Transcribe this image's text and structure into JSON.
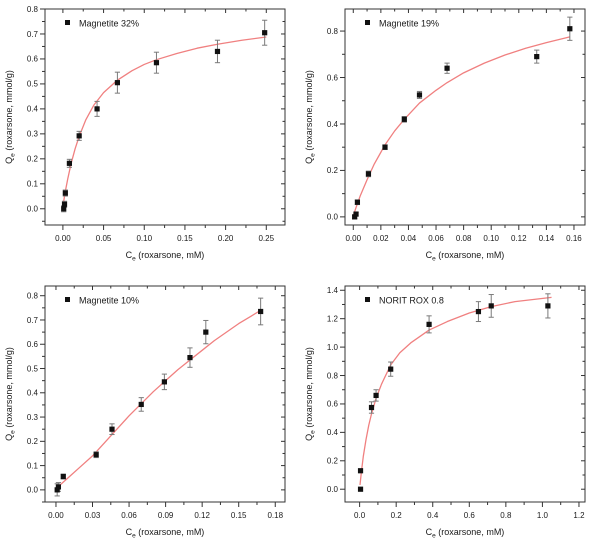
{
  "figure": {
    "background": "#ffffff",
    "colors": {
      "curve": "#f08080",
      "marker": "#111111",
      "error_bar": "#7a7a7a",
      "axis": "#333333",
      "text": "#1a1a1a"
    }
  },
  "chart_data": [
    {
      "type": "scatter",
      "panel": "top-left",
      "legend": "Magnetite 32%",
      "xlabel": "C_e (roxarsone, mM)",
      "ylabel": "Q_e (roxarsone, mmol/g)",
      "xlim": [
        -0.022,
        0.273
      ],
      "ylim": [
        -0.065,
        0.8
      ],
      "xtick_vals": [
        0.0,
        0.05,
        0.1,
        0.15,
        0.2,
        0.25
      ],
      "xtick_labels": [
        "0.00",
        "0.05",
        "0.10",
        "0.15",
        "0.20",
        "0.25"
      ],
      "ytick_vals": [
        0.0,
        0.1,
        0.2,
        0.3,
        0.4,
        0.5,
        0.6,
        0.7,
        0.8
      ],
      "ytick_labels": [
        "0.0",
        "0.1",
        "0.2",
        "0.3",
        "0.4",
        "0.5",
        "0.6",
        "0.7",
        "0.8"
      ],
      "grid": false,
      "legend_position": "upper-left-inside",
      "points": [
        [
          0.001,
          0.0,
          0.012
        ],
        [
          0.002,
          0.018,
          0.012
        ],
        [
          0.003,
          0.063,
          0.012
        ],
        [
          0.008,
          0.182,
          0.016
        ],
        [
          0.02,
          0.292,
          0.018
        ],
        [
          0.042,
          0.4,
          0.03
        ],
        [
          0.067,
          0.505,
          0.042
        ],
        [
          0.115,
          0.585,
          0.042
        ],
        [
          0.19,
          0.63,
          0.045
        ],
        [
          0.248,
          0.705,
          0.05
        ]
      ],
      "fit_curve": [
        [
          0.0,
          0.01
        ],
        [
          0.003,
          0.07
        ],
        [
          0.006,
          0.12
        ],
        [
          0.01,
          0.18
        ],
        [
          0.015,
          0.24
        ],
        [
          0.02,
          0.29
        ],
        [
          0.028,
          0.355
        ],
        [
          0.038,
          0.415
        ],
        [
          0.05,
          0.465
        ],
        [
          0.067,
          0.515
        ],
        [
          0.085,
          0.553
        ],
        [
          0.1,
          0.578
        ],
        [
          0.115,
          0.597
        ],
        [
          0.14,
          0.622
        ],
        [
          0.165,
          0.643
        ],
        [
          0.19,
          0.659
        ],
        [
          0.22,
          0.675
        ],
        [
          0.25,
          0.688
        ]
      ]
    },
    {
      "type": "scatter",
      "panel": "top-right",
      "legend": "Magnetite 19%",
      "xlabel": "C_e (roxarsone, mM)",
      "ylabel": "Q_e (roxarsone, mmol/g)",
      "xlim": [
        -0.006,
        0.168
      ],
      "ylim": [
        -0.035,
        0.895
      ],
      "xtick_vals": [
        0.0,
        0.02,
        0.04,
        0.06,
        0.08,
        0.1,
        0.12,
        0.14,
        0.16
      ],
      "xtick_labels": [
        "0.00",
        "0.02",
        "0.04",
        "0.06",
        "0.08",
        "0.10",
        "0.12",
        "0.14",
        "0.16"
      ],
      "ytick_vals": [
        0.0,
        0.2,
        0.4,
        0.6,
        0.8
      ],
      "ytick_labels": [
        "0.0",
        "0.2",
        "0.4",
        "0.6",
        "0.8"
      ],
      "grid": false,
      "legend_position": "upper-left-inside",
      "points": [
        [
          0.001,
          0.0,
          0.008
        ],
        [
          0.002,
          0.012,
          0.008
        ],
        [
          0.003,
          0.063,
          0.01
        ],
        [
          0.011,
          0.185,
          0.012
        ],
        [
          0.023,
          0.3,
          0.01
        ],
        [
          0.037,
          0.42,
          0.012
        ],
        [
          0.048,
          0.525,
          0.015
        ],
        [
          0.068,
          0.64,
          0.022
        ],
        [
          0.133,
          0.69,
          0.028
        ],
        [
          0.157,
          0.81,
          0.05
        ]
      ],
      "fit_curve": [
        [
          0.0,
          0.005
        ],
        [
          0.002,
          0.04
        ],
        [
          0.005,
          0.09
        ],
        [
          0.01,
          0.16
        ],
        [
          0.015,
          0.225
        ],
        [
          0.023,
          0.31
        ],
        [
          0.03,
          0.37
        ],
        [
          0.037,
          0.42
        ],
        [
          0.048,
          0.49
        ],
        [
          0.06,
          0.545
        ],
        [
          0.068,
          0.578
        ],
        [
          0.08,
          0.62
        ],
        [
          0.095,
          0.662
        ],
        [
          0.11,
          0.697
        ],
        [
          0.125,
          0.726
        ],
        [
          0.14,
          0.75
        ],
        [
          0.157,
          0.775
        ]
      ]
    },
    {
      "type": "scatter",
      "panel": "bottom-left",
      "legend": "Magnetite 10%",
      "xlabel": "C_e (roxarsone, mM)",
      "ylabel": "Q_e (roxarsone, mmol/g)",
      "xlim": [
        -0.009,
        0.188
      ],
      "ylim": [
        -0.05,
        0.84
      ],
      "xtick_vals": [
        0.0,
        0.03,
        0.06,
        0.09,
        0.12,
        0.15,
        0.18
      ],
      "xtick_labels": [
        "0.00",
        "0.03",
        "0.06",
        "0.09",
        "0.12",
        "0.15",
        "0.18"
      ],
      "ytick_vals": [
        0.0,
        0.1,
        0.2,
        0.3,
        0.4,
        0.5,
        0.6,
        0.7,
        0.8
      ],
      "ytick_labels": [
        "0.0",
        "0.1",
        "0.2",
        "0.3",
        "0.4",
        "0.5",
        "0.6",
        "0.7",
        "0.8"
      ],
      "grid": false,
      "legend_position": "upper-left-inside",
      "points": [
        [
          0.001,
          0.0,
          0.025
        ],
        [
          0.002,
          0.012,
          0.018
        ],
        [
          0.006,
          0.055,
          0.01
        ],
        [
          0.033,
          0.145,
          0.012
        ],
        [
          0.046,
          0.25,
          0.022
        ],
        [
          0.07,
          0.352,
          0.028
        ],
        [
          0.089,
          0.445,
          0.032
        ],
        [
          0.11,
          0.545,
          0.04
        ],
        [
          0.123,
          0.65,
          0.048
        ],
        [
          0.168,
          0.735,
          0.055
        ]
      ],
      "fit_curve": [
        [
          0.0,
          0.005
        ],
        [
          0.01,
          0.05
        ],
        [
          0.02,
          0.095
        ],
        [
          0.03,
          0.14
        ],
        [
          0.04,
          0.195
        ],
        [
          0.05,
          0.25
        ],
        [
          0.06,
          0.305
        ],
        [
          0.07,
          0.355
        ],
        [
          0.08,
          0.405
        ],
        [
          0.09,
          0.45
        ],
        [
          0.1,
          0.495
        ],
        [
          0.11,
          0.535
        ],
        [
          0.12,
          0.575
        ],
        [
          0.13,
          0.615
        ],
        [
          0.14,
          0.65
        ],
        [
          0.15,
          0.685
        ],
        [
          0.16,
          0.715
        ],
        [
          0.168,
          0.74
        ]
      ]
    },
    {
      "type": "scatter",
      "panel": "bottom-right",
      "legend": "NORIT ROX 0.8",
      "xlabel": "C_e (roxarsone, mM)",
      "ylabel": "Q_e (roxarsone, mmol/g)",
      "xlim": [
        -0.08,
        1.233
      ],
      "ylim": [
        -0.09,
        1.43
      ],
      "xtick_vals": [
        0.0,
        0.2,
        0.4,
        0.6,
        0.8,
        1.0,
        1.2
      ],
      "xtick_labels": [
        "0.0",
        "0.2",
        "0.4",
        "0.6",
        "0.8",
        "1.0",
        "1.2"
      ],
      "ytick_vals": [
        0.0,
        0.2,
        0.4,
        0.6,
        0.8,
        1.0,
        1.2,
        1.4
      ],
      "ytick_labels": [
        "0.0",
        "0.2",
        "0.4",
        "0.6",
        "0.8",
        "1.0",
        "1.2",
        "1.4"
      ],
      "grid": false,
      "legend_position": "upper-left-inside",
      "points": [
        [
          0.005,
          0.0,
          0
        ],
        [
          0.005,
          0.13,
          0
        ],
        [
          0.065,
          0.575,
          0.04
        ],
        [
          0.09,
          0.66,
          0.04
        ],
        [
          0.17,
          0.845,
          0.05
        ],
        [
          0.38,
          1.16,
          0.06
        ],
        [
          0.65,
          1.25,
          0.07
        ],
        [
          0.72,
          1.29,
          0.08
        ],
        [
          1.03,
          1.29,
          0.085
        ]
      ],
      "fit_curve": [
        [
          0.002,
          0.03
        ],
        [
          0.01,
          0.125
        ],
        [
          0.02,
          0.23
        ],
        [
          0.035,
          0.35
        ],
        [
          0.05,
          0.45
        ],
        [
          0.065,
          0.53
        ],
        [
          0.09,
          0.64
        ],
        [
          0.12,
          0.74
        ],
        [
          0.17,
          0.875
        ],
        [
          0.22,
          0.96
        ],
        [
          0.28,
          1.03
        ],
        [
          0.38,
          1.12
        ],
        [
          0.48,
          1.18
        ],
        [
          0.6,
          1.24
        ],
        [
          0.72,
          1.285
        ],
        [
          0.85,
          1.32
        ],
        [
          1.05,
          1.35
        ]
      ]
    }
  ]
}
